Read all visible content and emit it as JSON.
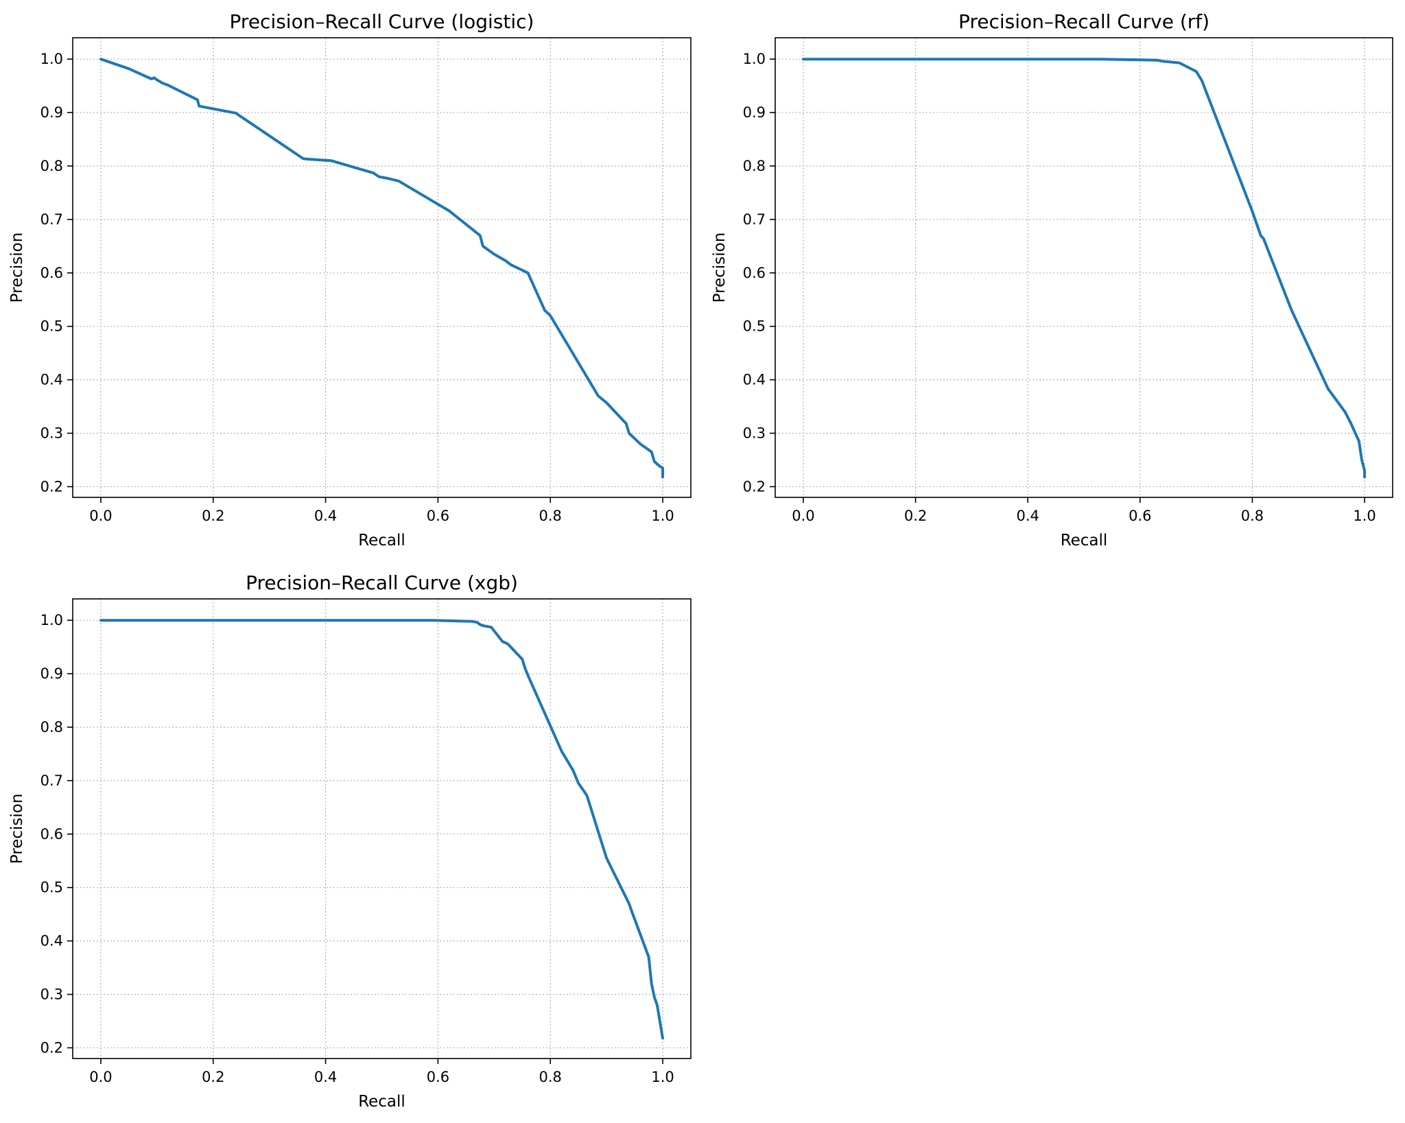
{
  "chart_data": [
    {
      "type": "line",
      "title": "Precision–Recall Curve (logistic)",
      "xlabel": "Recall",
      "ylabel": "Precision",
      "xlim": [
        -0.05,
        1.05
      ],
      "ylim": [
        0.18,
        1.04
      ],
      "xticks": [
        "0.0",
        "0.2",
        "0.4",
        "0.6",
        "0.8",
        "1.0"
      ],
      "yticks": [
        "0.2",
        "0.3",
        "0.4",
        "0.5",
        "0.6",
        "0.7",
        "0.8",
        "0.9",
        "1.0"
      ],
      "grid": true,
      "color": "#1f77b4",
      "series": [
        {
          "x": [
            0.0,
            0.05,
            0.09,
            0.095,
            0.1,
            0.11,
            0.12,
            0.172,
            0.175,
            0.24,
            0.36,
            0.365,
            0.41,
            0.485,
            0.495,
            0.51,
            0.53,
            0.62,
            0.675,
            0.68,
            0.7,
            0.72,
            0.73,
            0.76,
            0.79,
            0.8,
            0.885,
            0.9,
            0.935,
            0.94,
            0.96,
            0.98,
            0.985,
            0.995,
            1.0,
            1.0
          ],
          "y": [
            1.0,
            0.982,
            0.963,
            0.965,
            0.961,
            0.955,
            0.951,
            0.924,
            0.912,
            0.899,
            0.814,
            0.813,
            0.81,
            0.787,
            0.78,
            0.777,
            0.772,
            0.716,
            0.67,
            0.65,
            0.635,
            0.623,
            0.615,
            0.6,
            0.53,
            0.52,
            0.37,
            0.357,
            0.318,
            0.3,
            0.28,
            0.265,
            0.247,
            0.238,
            0.235,
            0.218
          ]
        }
      ]
    },
    {
      "type": "line",
      "title": "Precision–Recall Curve (rf)",
      "xlabel": "Recall",
      "ylabel": "Precision",
      "xlim": [
        -0.05,
        1.05
      ],
      "ylim": [
        0.18,
        1.04
      ],
      "xticks": [
        "0.0",
        "0.2",
        "0.4",
        "0.6",
        "0.8",
        "1.0"
      ],
      "yticks": [
        "0.2",
        "0.3",
        "0.4",
        "0.5",
        "0.6",
        "0.7",
        "0.8",
        "0.9",
        "1.0"
      ],
      "grid": true,
      "color": "#1f77b4",
      "series": [
        {
          "x": [
            0.0,
            0.53,
            0.63,
            0.64,
            0.67,
            0.7,
            0.71,
            0.8,
            0.815,
            0.82,
            0.87,
            0.935,
            0.965,
            0.975,
            0.99,
            0.995,
            1.0,
            1.0
          ],
          "y": [
            1.0,
            1.0,
            0.998,
            0.996,
            0.993,
            0.977,
            0.96,
            0.715,
            0.67,
            0.664,
            0.53,
            0.383,
            0.34,
            0.32,
            0.285,
            0.25,
            0.23,
            0.218
          ]
        }
      ]
    },
    {
      "type": "line",
      "title": "Precision–Recall Curve (xgb)",
      "xlabel": "Recall",
      "ylabel": "Precision",
      "xlim": [
        -0.05,
        1.05
      ],
      "ylim": [
        0.18,
        1.04
      ],
      "xticks": [
        "0.0",
        "0.2",
        "0.4",
        "0.6",
        "0.8",
        "1.0"
      ],
      "yticks": [
        "0.2",
        "0.3",
        "0.4",
        "0.5",
        "0.6",
        "0.7",
        "0.8",
        "0.9",
        "1.0"
      ],
      "grid": true,
      "color": "#1f77b4",
      "series": [
        {
          "x": [
            0.0,
            0.59,
            0.66,
            0.67,
            0.675,
            0.68,
            0.695,
            0.7,
            0.715,
            0.72,
            0.725,
            0.75,
            0.755,
            0.76,
            0.82,
            0.84,
            0.85,
            0.86,
            0.865,
            0.9,
            0.94,
            0.945,
            0.975,
            0.98,
            0.985,
            0.99,
            1.0
          ],
          "y": [
            1.0,
            1.0,
            0.998,
            0.996,
            0.992,
            0.99,
            0.987,
            0.98,
            0.96,
            0.958,
            0.955,
            0.927,
            0.91,
            0.897,
            0.755,
            0.72,
            0.695,
            0.68,
            0.672,
            0.555,
            0.47,
            0.455,
            0.37,
            0.32,
            0.295,
            0.28,
            0.218
          ]
        }
      ]
    }
  ]
}
